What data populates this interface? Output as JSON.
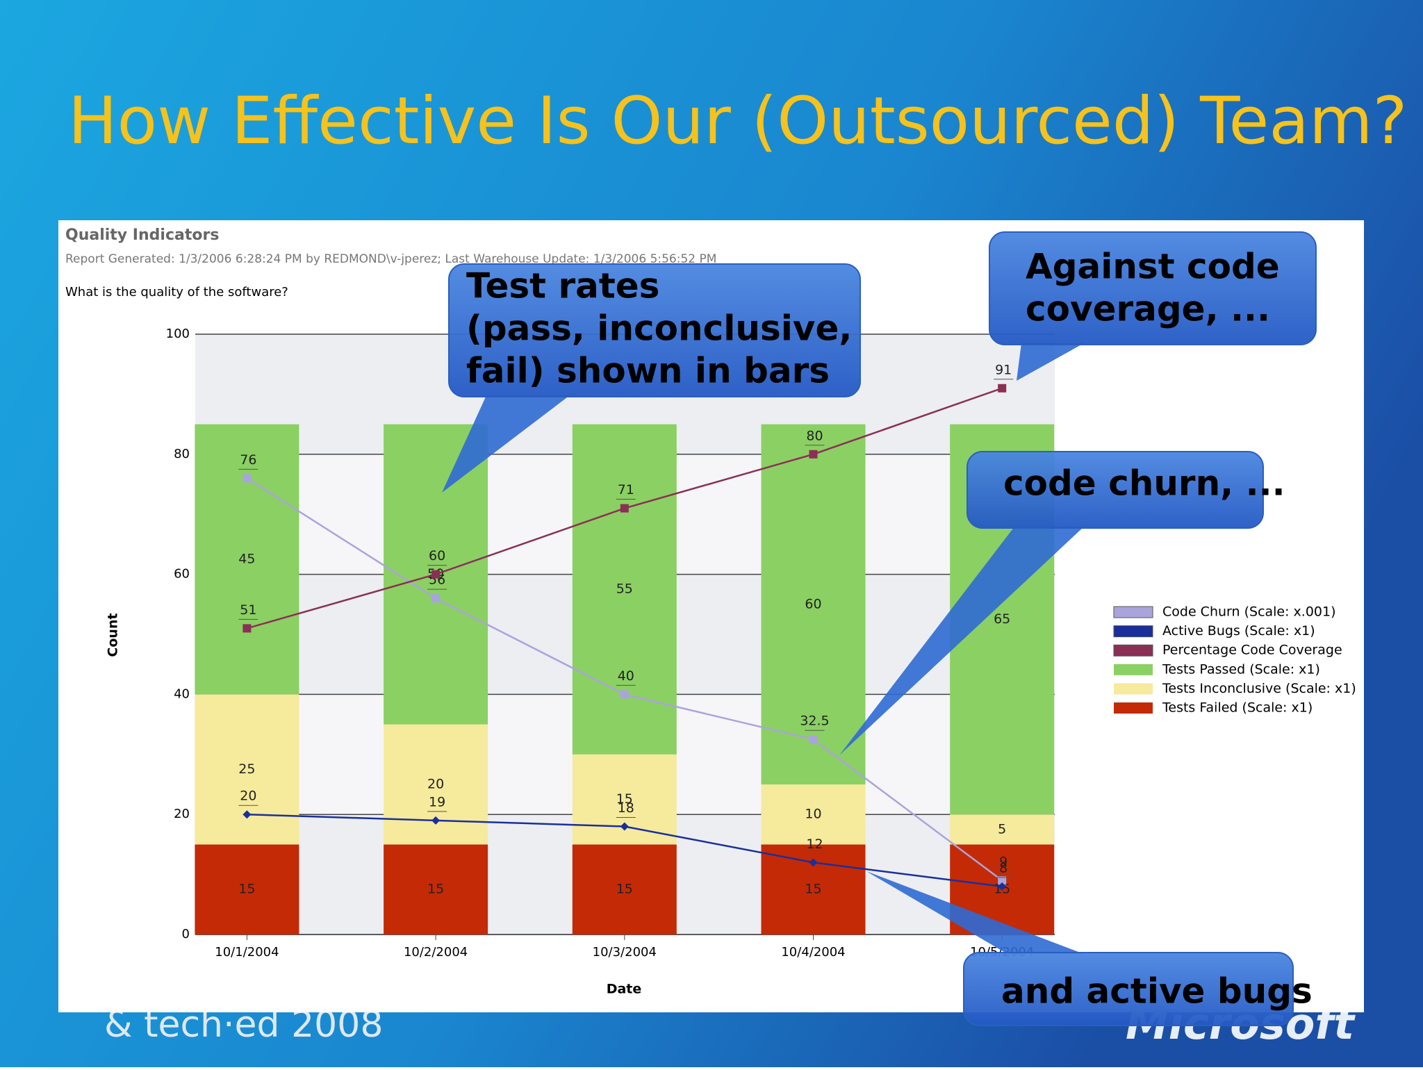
{
  "slide": {
    "title": "How Effective Is Our (Outsourced) Team?",
    "callouts": [
      {
        "lines": [
          "Test rates",
          "(pass, inconclusive,",
          "fail) shown in bars"
        ]
      },
      {
        "lines": [
          "Against code",
          "coverage, ..."
        ]
      },
      {
        "lines": [
          "code churn, ..."
        ]
      },
      {
        "lines": [
          "and active bugs"
        ]
      }
    ],
    "footer": "& tech·ed 2008",
    "logo": "Microsoft"
  },
  "chart_data": {
    "type": "bar",
    "title": "Quality Indicators",
    "subtitle": "Report Generated: 1/3/2006 6:28:24 PM by REDMOND\\v-jperez; Last Warehouse Update: 1/3/2006 5:56:52 PM",
    "question": "What is the quality of the software?",
    "x_label": "Date",
    "y_label": "Count",
    "categories": [
      "10/1/2004",
      "10/2/2004",
      "10/3/2004",
      "10/4/2004",
      "10/5/2004"
    ],
    "series": [
      {
        "name": "Code Churn (Scale: x.001)",
        "type": "line",
        "marker": "square",
        "color": "#aaa4dc",
        "values": [
          76,
          56,
          40,
          32.5,
          9
        ]
      },
      {
        "name": "Active Bugs (Scale: x1)",
        "type": "line",
        "marker": "diamond",
        "color": "#1a2f9c",
        "values": [
          20,
          19,
          18,
          12,
          8
        ]
      },
      {
        "name": "Percentage Code Coverage",
        "type": "line",
        "marker": "square",
        "color": "#8b2f55",
        "values": [
          51,
          60,
          71,
          80,
          91
        ]
      },
      {
        "name": "Tests Passed (Scale: x1)",
        "type": "bar",
        "color": "#8bd063",
        "values": [
          45,
          50,
          55,
          60,
          65
        ]
      },
      {
        "name": "Tests Inconclusive (Scale: x1)",
        "type": "bar",
        "color": "#f6ea9c",
        "values": [
          25,
          20,
          15,
          10,
          5
        ]
      },
      {
        "name": "Tests Failed (Scale: x1)",
        "type": "bar",
        "color": "#c42a06",
        "values": [
          15,
          15,
          15,
          15,
          15
        ]
      }
    ],
    "ylim": [
      0,
      100
    ],
    "yticks": [
      0,
      20,
      40,
      60,
      80,
      100
    ],
    "grid": true
  }
}
